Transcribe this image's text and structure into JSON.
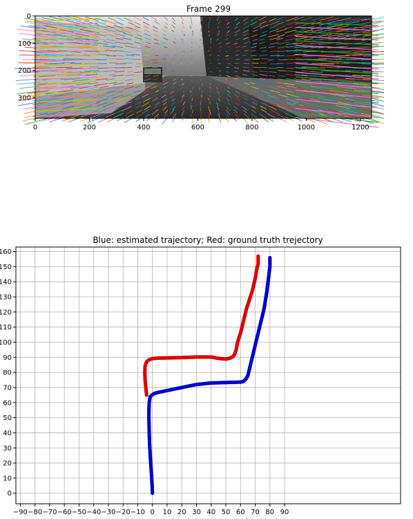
{
  "chart_data": [
    {
      "type": "image",
      "title": "Frame 299",
      "xlim": [
        0,
        1241
      ],
      "ylim": [
        376,
        0
      ],
      "xticks": [
        0,
        200,
        400,
        600,
        800,
        1000,
        1200
      ],
      "yticks": [
        0,
        100,
        200,
        300
      ]
    },
    {
      "type": "scatter",
      "title": "Blue: estimated trajectory; Red: ground truth trejectory",
      "xlabel": "",
      "ylabel": "",
      "xlim": [
        -93,
        169
      ],
      "ylim": [
        -7,
        163
      ],
      "grid": true,
      "xticks": [
        -90,
        -80,
        -70,
        -60,
        -50,
        -40,
        -30,
        -20,
        -10,
        0,
        10,
        20,
        30,
        40,
        50,
        60,
        70,
        80,
        90
      ],
      "yticks": [
        0,
        10,
        20,
        30,
        40,
        50,
        60,
        70,
        80,
        90,
        100,
        110,
        120,
        130,
        140,
        150,
        160
      ],
      "series": [
        {
          "color": "#0000cc",
          "x": [
            0,
            -0.2,
            -0.5,
            -0.8,
            -1.2,
            -1.5,
            -1.8,
            -2.0,
            -2.2,
            -2.3,
            -2.4,
            -2.4,
            -2.2,
            -1.5,
            1,
            5,
            10,
            20,
            30,
            40,
            50,
            57,
            60,
            62,
            63,
            64,
            65,
            66,
            68,
            70,
            72,
            74,
            76,
            77,
            78,
            79,
            80,
            80
          ],
          "y": [
            0,
            5,
            10,
            15,
            20,
            25,
            30,
            35,
            40,
            45,
            50,
            55,
            60,
            64,
            66,
            67,
            68,
            70,
            72,
            73,
            73.3,
            73.5,
            73.6,
            74,
            75,
            76,
            78,
            82,
            90,
            98,
            106,
            114,
            122,
            128,
            134,
            142,
            150,
            156
          ]
        },
        {
          "color": "#dd0000",
          "x": [
            -4,
            -4.5,
            -5,
            -5.2,
            -5,
            -4.5,
            -3.5,
            -2,
            0,
            5,
            10,
            20,
            30,
            40,
            45,
            50,
            53,
            55,
            56,
            57,
            58,
            60,
            62,
            64,
            66,
            68,
            69,
            70,
            71,
            72,
            72
          ],
          "y": [
            65,
            70,
            75,
            80,
            84,
            86,
            87.5,
            88.5,
            89.2,
            89.5,
            89.6,
            89.8,
            90.2,
            90.2,
            89.3,
            88.8,
            89.5,
            90.5,
            92,
            95,
            100,
            106,
            114,
            122,
            128,
            134,
            138,
            142,
            148,
            152,
            157
          ]
        }
      ]
    }
  ]
}
